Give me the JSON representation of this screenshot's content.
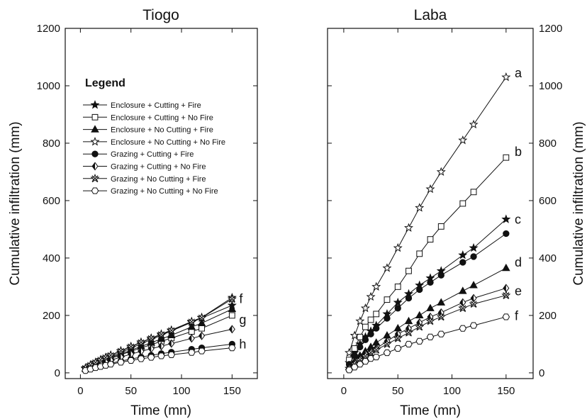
{
  "legend": {
    "title": "Legend",
    "entries": [
      {
        "label": "Enclosure + Cutting + Fire",
        "marker": "star",
        "fill": "filled"
      },
      {
        "label": "Enclosure + Cutting + No Fire",
        "marker": "square",
        "fill": "open"
      },
      {
        "label": "Enclosure + No Cutting + Fire",
        "marker": "triangle",
        "fill": "filled"
      },
      {
        "label": "Enclosure + No Cutting + No Fire",
        "marker": "star",
        "fill": "open"
      },
      {
        "label": "Grazing + Cutting + Fire",
        "marker": "circle",
        "fill": "filled"
      },
      {
        "label": "Grazing + Cutting + No Fire",
        "marker": "diamond",
        "fill": "half"
      },
      {
        "label": "Grazing + No Cutting + Fire",
        "marker": "asterisk",
        "fill": "open"
      },
      {
        "label": "Grazing + No Cutting + No Fire",
        "marker": "hexagon",
        "fill": "open"
      }
    ]
  },
  "chart_data": [
    {
      "type": "line",
      "title": "Tiogo",
      "xlabel": "Time (mn)",
      "ylabel": "Cumulative infiltration (mm)",
      "xlim": [
        -15,
        175
      ],
      "ylim": [
        -20,
        1200
      ],
      "xticks": [
        0,
        50,
        100,
        150
      ],
      "yticks": [
        0,
        200,
        400,
        600,
        800,
        1000,
        1200
      ],
      "yaxis_side": "left",
      "x": [
        5,
        10,
        15,
        20,
        25,
        30,
        40,
        50,
        60,
        70,
        80,
        90,
        110,
        120,
        150
      ],
      "series": [
        {
          "name": "Enclosure + Cutting + Fire",
          "values": [
            14,
            24,
            33,
            41,
            49,
            56,
            71,
            86,
            101,
            116,
            131,
            146,
            176,
            191,
            235
          ]
        },
        {
          "name": "Enclosure + Cutting + No Fire",
          "values": [
            13,
            22,
            30,
            37,
            44,
            50,
            63,
            75,
            87,
            98,
            110,
            121,
            144,
            155,
            200
          ]
        },
        {
          "name": "Enclosure + No Cutting + Fire",
          "values": [
            14,
            23,
            31,
            39,
            46,
            53,
            66,
            79,
            92,
            105,
            118,
            131,
            160,
            173,
            222
          ]
        },
        {
          "name": "Enclosure + No Cutting + No Fire",
          "values": [
            17,
            28,
            37,
            46,
            54,
            62,
            77,
            92,
            107,
            121,
            135,
            149,
            179,
            193,
            262
          ]
        },
        {
          "name": "Grazing + Cutting + Fire",
          "values": [
            9,
            15,
            20,
            25,
            29,
            33,
            41,
            48,
            55,
            61,
            67,
            72,
            82,
            87,
            100
          ]
        },
        {
          "name": "Grazing + Cutting + No Fire",
          "values": [
            11,
            19,
            26,
            32,
            38,
            44,
            55,
            65,
            75,
            84,
            93,
            102,
            120,
            129,
            152
          ]
        },
        {
          "name": "Grazing + No Cutting + Fire",
          "values": [
            16,
            27,
            36,
            45,
            53,
            61,
            76,
            91,
            106,
            120,
            134,
            148,
            178,
            192,
            257
          ]
        },
        {
          "name": "Grazing + No Cutting + No Fire",
          "values": [
            8,
            13,
            18,
            22,
            26,
            30,
            37,
            43,
            49,
            54,
            59,
            63,
            71,
            76,
            87
          ]
        }
      ],
      "annotations": [
        {
          "text": "f",
          "x": 157,
          "y": 258
        },
        {
          "text": "g",
          "x": 157,
          "y": 185
        },
        {
          "text": "h",
          "x": 157,
          "y": 100
        }
      ]
    },
    {
      "type": "line",
      "title": "Laba",
      "xlabel": "Time (mn)",
      "ylabel": "Cumulative infiltration (mm)",
      "xlim": [
        -15,
        175
      ],
      "ylim": [
        -20,
        1200
      ],
      "xticks": [
        0,
        50,
        100,
        150
      ],
      "yticks": [
        0,
        200,
        400,
        600,
        800,
        1000,
        1200
      ],
      "yaxis_side": "right",
      "x": [
        5,
        10,
        15,
        20,
        25,
        30,
        40,
        50,
        60,
        70,
        80,
        90,
        110,
        120,
        150
      ],
      "series": [
        {
          "name": "Enclosure + Cutting + Fire",
          "values": [
            35,
            70,
            100,
            125,
            145,
            165,
            205,
            245,
            275,
            305,
            330,
            355,
            410,
            435,
            535
          ]
        },
        {
          "name": "Enclosure + Cutting + No Fire",
          "values": [
            45,
            85,
            125,
            160,
            185,
            205,
            255,
            300,
            355,
            415,
            465,
            510,
            590,
            630,
            750
          ]
        },
        {
          "name": "Enclosure + No Cutting + Fire",
          "values": [
            20,
            40,
            60,
            75,
            90,
            105,
            130,
            155,
            180,
            200,
            225,
            245,
            285,
            305,
            365
          ]
        },
        {
          "name": "Enclosure + No Cutting + No Fire",
          "values": [
            70,
            130,
            180,
            225,
            265,
            300,
            365,
            435,
            505,
            575,
            640,
            700,
            810,
            865,
            1030
          ]
        },
        {
          "name": "Grazing + Cutting + Fire",
          "values": [
            30,
            60,
            90,
            115,
            135,
            155,
            190,
            225,
            260,
            290,
            315,
            340,
            385,
            405,
            485
          ]
        },
        {
          "name": "Grazing + Cutting + No Fire",
          "values": [
            18,
            35,
            50,
            65,
            75,
            85,
            110,
            135,
            155,
            175,
            195,
            210,
            245,
            260,
            295
          ]
        },
        {
          "name": "Grazing + No Cutting + Fire",
          "values": [
            15,
            30,
            45,
            58,
            70,
            80,
            100,
            120,
            140,
            160,
            180,
            195,
            225,
            240,
            270
          ]
        },
        {
          "name": "Grazing + No Cutting + No Fire",
          "values": [
            10,
            20,
            30,
            40,
            50,
            55,
            70,
            85,
            100,
            110,
            125,
            135,
            155,
            165,
            195
          ]
        }
      ],
      "annotations": [
        {
          "text": "a",
          "x": 158,
          "y": 1045
        },
        {
          "text": "b",
          "x": 158,
          "y": 770
        },
        {
          "text": "c",
          "x": 158,
          "y": 535
        },
        {
          "text": "d",
          "x": 158,
          "y": 385
        },
        {
          "text": "e",
          "x": 158,
          "y": 285
        },
        {
          "text": "f",
          "x": 158,
          "y": 198
        }
      ]
    }
  ]
}
